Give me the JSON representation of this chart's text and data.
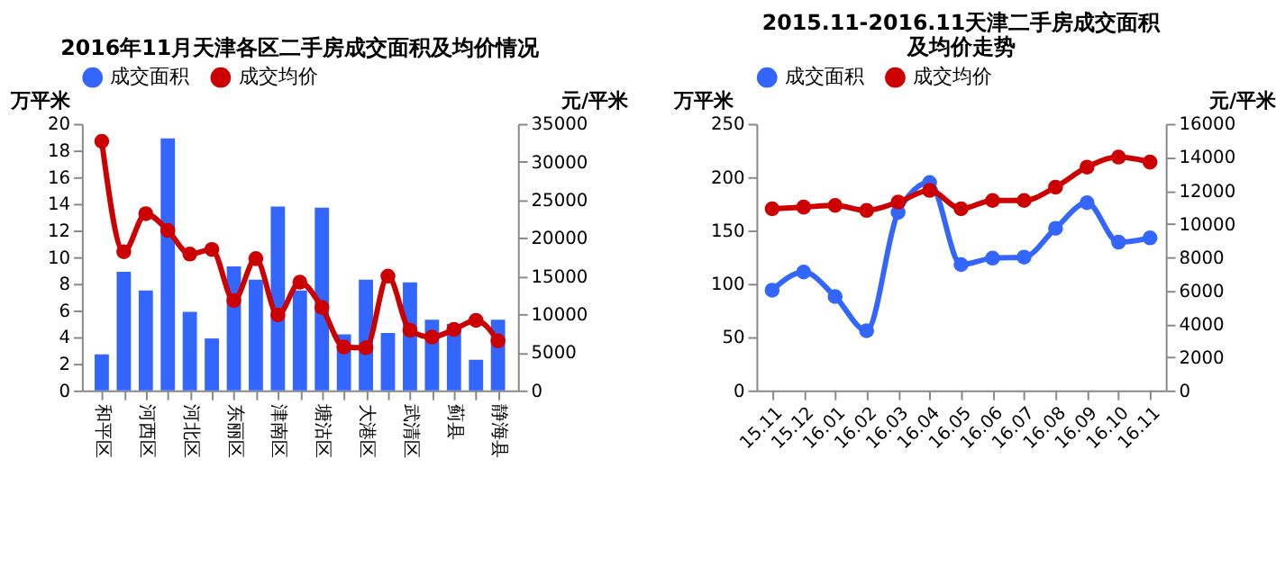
{
  "chart_data": [
    {
      "type": "bar",
      "title": "2016年11月天津各区二手房成交面积及均价情况",
      "ylabel": "万平米",
      "y2label": "元/平米",
      "categories": [
        "和平区",
        null,
        "河西区",
        null,
        "河北区",
        null,
        "东丽区",
        null,
        "津南区",
        null,
        "塘沽区",
        null,
        "大港区",
        null,
        "武清区",
        null,
        "蓟县",
        null,
        "静海县"
      ],
      "series": [
        {
          "name": "成交面积",
          "color": "#3366ff",
          "values": [
            2.7,
            8.9,
            7.5,
            18.9,
            5.9,
            3.9,
            9.3,
            8.3,
            13.8,
            7.5,
            13.7,
            4.2,
            8.3,
            4.3,
            8.1,
            5.3,
            5.0,
            2.3,
            5.3
          ]
        },
        {
          "name": "成交均价",
          "type": "line",
          "axis": "y2",
          "color": "#cc0000",
          "values": [
            32700,
            18200,
            23200,
            21000,
            17900,
            18500,
            11800,
            17300,
            9900,
            14200,
            10900,
            5700,
            5600,
            15000,
            7900,
            7000,
            8000,
            9200,
            6500
          ]
        }
      ],
      "ylim": [
        0,
        20
      ],
      "yticks": [
        0,
        2,
        4,
        6,
        8,
        10,
        12,
        14,
        16,
        18,
        20
      ],
      "y2lim": [
        0,
        35000
      ],
      "y2ticks": [
        0,
        5000,
        10000,
        15000,
        20000,
        25000,
        30000,
        35000
      ],
      "marker": "circle",
      "legend": "top",
      "grid": false
    },
    {
      "type": "line",
      "title": "2015.11-2016.11天津二手房成交面积及均价走势",
      "ylabel": "万平米",
      "y2label": "元/平米",
      "categories": [
        "15.11",
        "15.12",
        "16.01",
        "16.02",
        "16.03",
        "16.04",
        "16.05",
        "16.06",
        "16.07",
        "16.08",
        "16.09",
        "16.10",
        "16.11"
      ],
      "series": [
        {
          "name": "成交面积",
          "color": "#3366ff",
          "values": [
            94,
            111,
            88,
            56,
            167,
            195,
            118,
            124,
            125,
            152,
            176,
            139,
            143
          ]
        },
        {
          "name": "成交均价",
          "axis": "y2",
          "color": "#cc0000",
          "values": [
            10900,
            11000,
            11100,
            10800,
            11300,
            12000,
            10900,
            11400,
            11400,
            12200,
            13400,
            14000,
            13700
          ]
        }
      ],
      "ylim": [
        0,
        250
      ],
      "yticks": [
        0,
        50,
        100,
        150,
        200,
        250
      ],
      "y2lim": [
        0,
        16000
      ],
      "y2ticks": [
        0,
        2000,
        4000,
        6000,
        8000,
        10000,
        12000,
        14000,
        16000
      ],
      "marker": "circle",
      "legend": "top",
      "grid": false
    }
  ]
}
